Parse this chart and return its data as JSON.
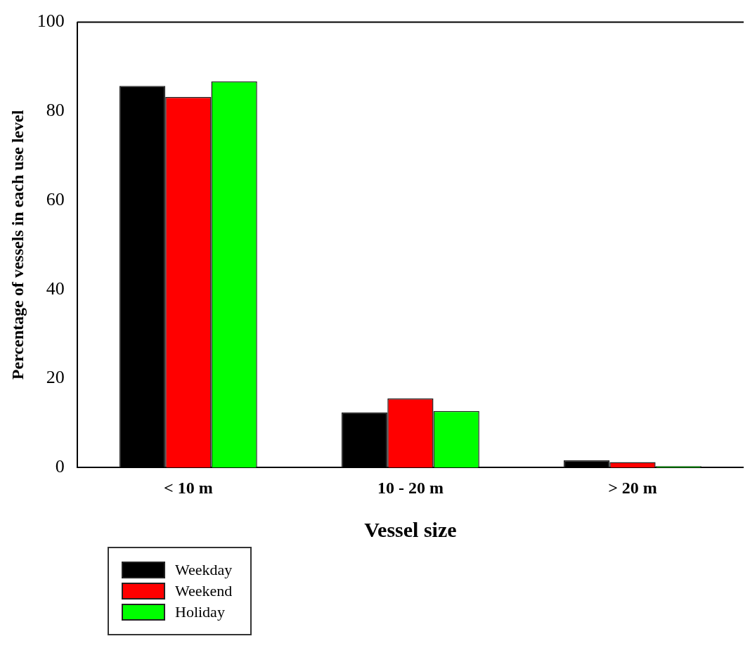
{
  "chart_data": {
    "type": "bar",
    "xlabel": "Vessel size",
    "ylabel": "Percentage of vessels in each use level",
    "categories": [
      "< 10 m",
      "10 - 20 m",
      "> 20 m"
    ],
    "series": [
      {
        "name": "Weekday",
        "color": "#000000",
        "values": [
          85.7,
          12.4,
          1.6
        ]
      },
      {
        "name": "Weekend",
        "color": "#ff0000",
        "values": [
          83.2,
          15.5,
          1.2
        ]
      },
      {
        "name": "Holiday",
        "color": "#00ff00",
        "values": [
          86.7,
          12.7,
          0.3
        ]
      }
    ],
    "ylim": [
      0,
      100
    ],
    "yticks": [
      0,
      20,
      40,
      60,
      80,
      100
    ],
    "grid": false,
    "legend": "bottom left"
  }
}
